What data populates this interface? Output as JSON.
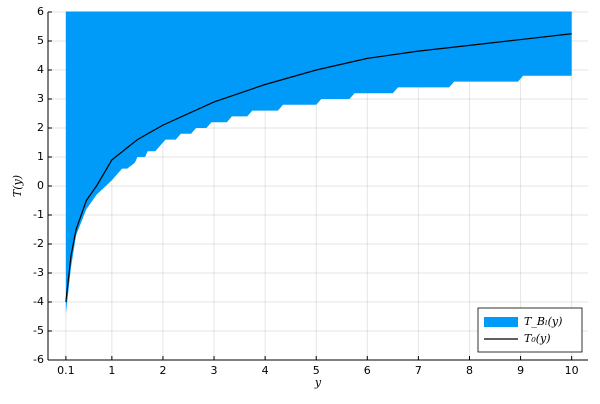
{
  "chart_data": {
    "type": "band-line",
    "xlabel": "y",
    "ylabel": "T(y)",
    "xlim": [
      -0.25,
      10.32
    ],
    "ylim": [
      -6,
      6
    ],
    "xticks": [
      0.1,
      1,
      2,
      3,
      4,
      5,
      6,
      7,
      8,
      9,
      10
    ],
    "yticks": [
      -6,
      -5,
      -4,
      -3,
      -2,
      -1,
      0,
      1,
      2,
      3,
      4,
      5,
      6
    ],
    "grid": true,
    "legend": "bottom-right",
    "band": {
      "name": "T_Bₗ(y)",
      "color": "#009af9",
      "x": [
        0.1,
        0.2,
        0.3,
        0.5,
        0.7,
        1.0,
        1.2,
        1.3,
        1.45,
        1.5,
        1.65,
        1.7,
        1.85,
        1.95,
        2.05,
        2.25,
        2.35,
        2.55,
        2.65,
        2.85,
        2.95,
        3.25,
        3.35,
        3.65,
        3.75,
        4.25,
        4.35,
        5.0,
        5.1,
        5.65,
        5.75,
        6.5,
        6.6,
        7.6,
        7.7,
        8.95,
        9.05,
        10
      ],
      "lower": [
        -4.4,
        -2.8,
        -1.7,
        -0.8,
        -0.3,
        0.2,
        0.6,
        0.6,
        0.8,
        1.0,
        1.0,
        1.2,
        1.2,
        1.4,
        1.6,
        1.6,
        1.8,
        1.8,
        2.0,
        2.0,
        2.2,
        2.2,
        2.4,
        2.4,
        2.6,
        2.6,
        2.8,
        2.8,
        3.0,
        3.0,
        3.2,
        3.2,
        3.4,
        3.4,
        3.6,
        3.6,
        3.8,
        3.8
      ],
      "upper": [
        6,
        6,
        6,
        6,
        6,
        6,
        6,
        6,
        6,
        6,
        6,
        6,
        6,
        6,
        6,
        6,
        6,
        6,
        6,
        6,
        6,
        6,
        6,
        6,
        6,
        6,
        6,
        6,
        6,
        6,
        6,
        6,
        6,
        6,
        6,
        6,
        6,
        6
      ]
    },
    "line": {
      "name": "T₀(y)",
      "color": "#000000",
      "x": [
        0.1,
        0.2,
        0.3,
        0.5,
        0.7,
        1,
        1.5,
        2,
        3,
        4,
        5,
        6,
        7,
        8,
        9,
        10
      ],
      "values": [
        -4.0,
        -2.4,
        -1.5,
        -0.5,
        0.0,
        0.9,
        1.6,
        2.1,
        2.9,
        3.5,
        4.0,
        4.4,
        4.65,
        4.85,
        5.05,
        5.25
      ]
    }
  }
}
